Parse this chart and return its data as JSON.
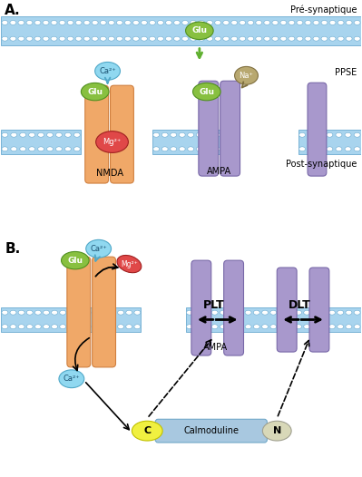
{
  "panel_A_label": "A.",
  "panel_B_label": "B.",
  "pre_synaptic_label": "Pré-synaptique",
  "post_synaptic_label": "Post-synaptique",
  "ppse_label": "PPSE",
  "nmda_label": "NMDA",
  "ampa_label": "AMPA",
  "plt_label": "PLT",
  "dlt_label": "DLT",
  "calmoduline_label": "Calmoduline",
  "c_label": "C",
  "n_label": "N",
  "glu_label": "Glu",
  "ca2_label": "Ca²⁺",
  "mg2_label": "Mg²⁺",
  "na_label": "Na⁺",
  "membrane_color": "#A8D4EE",
  "membrane_stripe": "#C8E8F8",
  "membrane_dark": "#6AAAD0",
  "nmda_color": "#F0A868",
  "nmda_edge": "#D08040",
  "ampa_color": "#A898CC",
  "ampa_edge": "#7868A8",
  "glu_color": "#88C040",
  "glu_edge": "#509020",
  "ca2_color": "#90D8F0",
  "ca2_edge": "#50A8C8",
  "mg2_color": "#E04848",
  "mg2_edge": "#A02020",
  "na_color": "#B8A870",
  "na_edge": "#807040",
  "calmod_body_color": "#A8C8E0",
  "calmod_c_color": "#F0F040",
  "calmod_n_color": "#D8D8B8",
  "bg_color": "#FFFFFF"
}
